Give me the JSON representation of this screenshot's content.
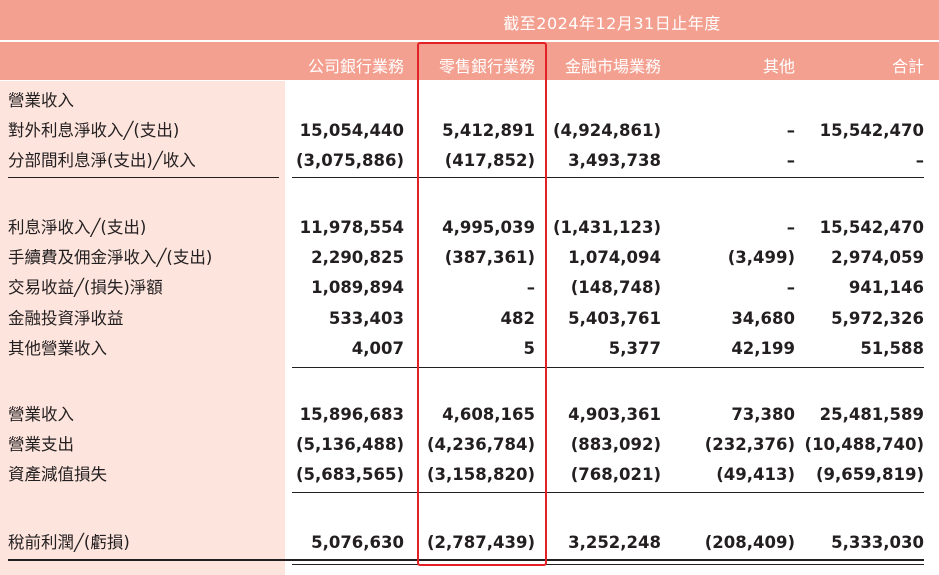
{
  "header": {
    "period": "截至2024年12月31日止年度",
    "columns": [
      "公司銀行業務",
      "零售銀行業務",
      "金融市場業務",
      "其他",
      "合計"
    ]
  },
  "rows": [
    {
      "label": "營業收入",
      "values": [
        "",
        "",
        "",
        "",
        ""
      ]
    },
    {
      "label": "對外利息淨收入╱(支出)",
      "values": [
        "15,054,440",
        "5,412,891",
        "(4,924,861)",
        "–",
        "15,542,470"
      ]
    },
    {
      "label": "分部間利息淨(支出)╱收入",
      "values": [
        "(3,075,886)",
        "(417,852)",
        "3,493,738",
        "–",
        "–"
      ]
    },
    {
      "label": "利息淨收入╱(支出)",
      "values": [
        "11,978,554",
        "4,995,039",
        "(1,431,123)",
        "–",
        "15,542,470"
      ]
    },
    {
      "label": "手續費及佣金淨收入╱(支出)",
      "values": [
        "2,290,825",
        "(387,361)",
        "1,074,094",
        "(3,499)",
        "2,974,059"
      ]
    },
    {
      "label": "交易收益╱(損失)淨額",
      "values": [
        "1,089,894",
        "–",
        "(148,748)",
        "–",
        "941,146"
      ]
    },
    {
      "label": "金融投資淨收益",
      "values": [
        "533,403",
        "482",
        "5,403,761",
        "34,680",
        "5,972,326"
      ]
    },
    {
      "label": "其他營業收入",
      "values": [
        "4,007",
        "5",
        "5,377",
        "42,199",
        "51,588"
      ]
    },
    {
      "label": "營業收入",
      "values": [
        "15,896,683",
        "4,608,165",
        "4,903,361",
        "73,380",
        "25,481,589"
      ]
    },
    {
      "label": "營業支出",
      "values": [
        "(5,136,488)",
        "(4,236,784)",
        "(883,092)",
        "(232,376)",
        "(10,488,740)"
      ]
    },
    {
      "label": "資產減值損失",
      "values": [
        "(5,683,565)",
        "(3,158,820)",
        "(768,021)",
        "(49,413)",
        "(9,659,819)"
      ]
    },
    {
      "label": "稅前利潤╱(虧損)",
      "values": [
        "5,076,630",
        "(2,787,439)",
        "3,252,248",
        "(208,409)",
        "5,333,030"
      ]
    }
  ],
  "colors": {
    "header_bg": "#f4a090",
    "label_bg": "#fde4dd",
    "highlight": "#e32026"
  }
}
